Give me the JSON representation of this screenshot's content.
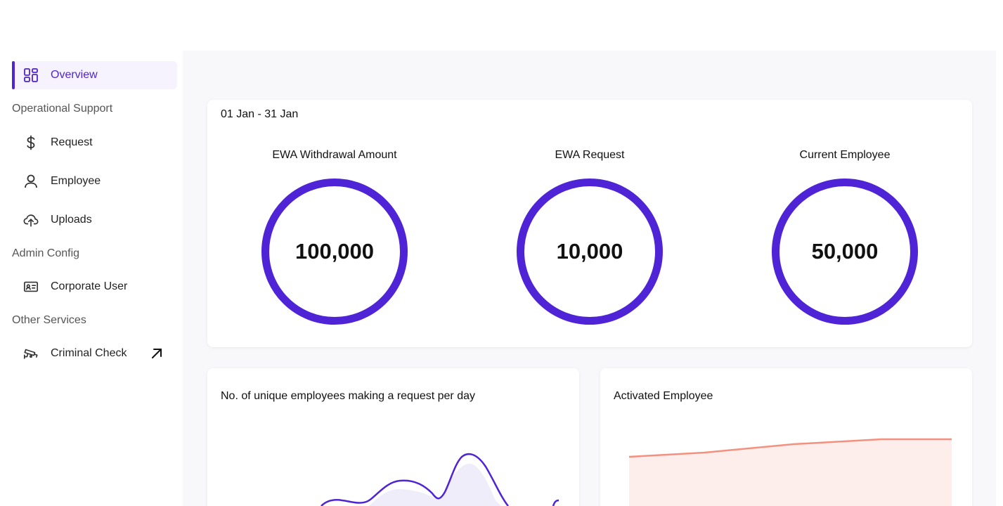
{
  "sidebar": {
    "active_item": {
      "label": "Overview",
      "icon": "dashboard-icon"
    },
    "sections": [
      {
        "title": "Operational Support",
        "items": [
          {
            "label": "Request",
            "icon": "dollar-icon"
          },
          {
            "label": "Employee",
            "icon": "user-icon"
          },
          {
            "label": "Uploads",
            "icon": "cloud-upload-icon"
          }
        ]
      },
      {
        "title": "Admin Config",
        "items": [
          {
            "label": "Corporate User",
            "icon": "id-card-icon"
          }
        ]
      },
      {
        "title": "Other Services",
        "items": [
          {
            "label": "Criminal Check",
            "icon": "cctv-icon",
            "external_icon": "arrow-up-right-icon"
          }
        ]
      }
    ]
  },
  "summary": {
    "date_range": "01 Jan - 31 Jan",
    "stats": [
      {
        "label": "EWA Withdrawal Amount",
        "value": "100,000"
      },
      {
        "label": "EWA Request",
        "value": "10,000"
      },
      {
        "label": "Current Employee",
        "value": "50,000"
      }
    ]
  },
  "charts": {
    "unique_employees": {
      "title": "No. of unique employees making a request per day"
    },
    "activated_employee": {
      "title": "Activated Employee"
    }
  },
  "colors": {
    "accent": "#4f24d6",
    "accent_light": "#f6f3fe",
    "line_chart_stroke": "#f4907f",
    "line_chart_fill": "#fdeeec"
  }
}
